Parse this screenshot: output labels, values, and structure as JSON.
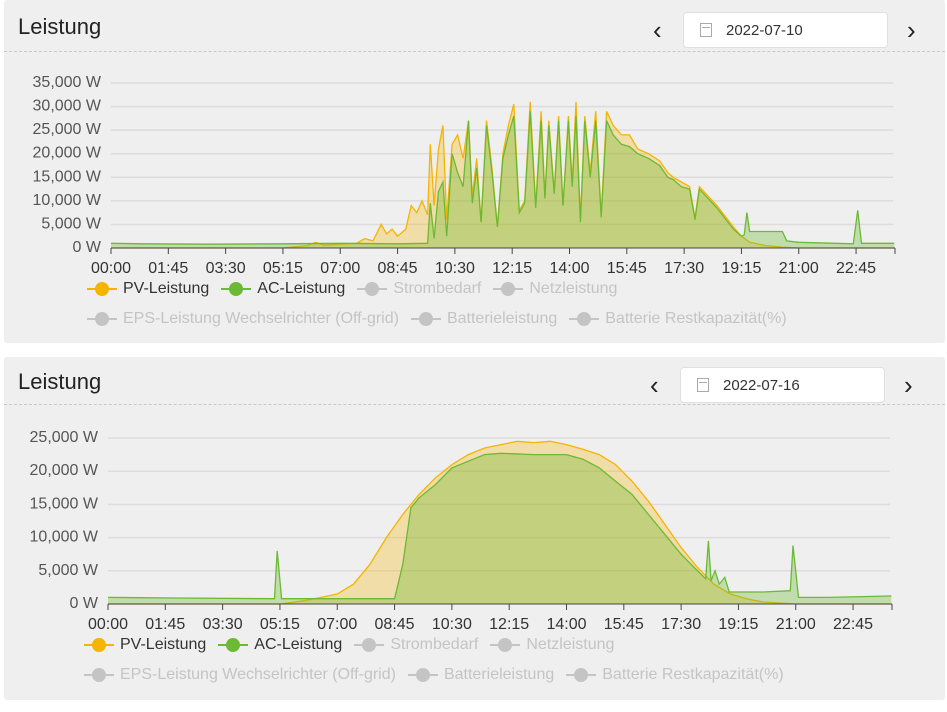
{
  "colors": {
    "pv": "#f5b400",
    "ac": "#6cb934",
    "inactive": "#c4c4c4",
    "grid": "#dcdcdc"
  },
  "icons": {
    "prev": "chevron-left-icon",
    "next": "chevron-right-icon",
    "date": "calendar-icon"
  },
  "legend": [
    {
      "label": "PV-Leistung",
      "active": true,
      "color": "#f5b400"
    },
    {
      "label": "AC-Leistung",
      "active": true,
      "color": "#6cb934"
    },
    {
      "label": "Strombedarf",
      "active": false
    },
    {
      "label": "Netzleistung",
      "active": false
    },
    {
      "label": "EPS-Leistung Wechselrichter (Off-grid)",
      "active": false
    },
    {
      "label": "Batterieleistung",
      "active": false
    },
    {
      "label": "Batterie Restkapazität(%)",
      "active": false
    }
  ],
  "panels": [
    {
      "title": "Leistung",
      "date": "2022-07-10",
      "prev": "‹",
      "next": "›"
    },
    {
      "title": "Leistung",
      "date": "2022-07-16",
      "prev": "‹",
      "next": "›"
    }
  ],
  "chart_data": [
    {
      "type": "area",
      "title": "",
      "xlabel": "",
      "ylabel": "",
      "grid": true,
      "legend_placement": "bottom",
      "xticks": [
        "00:00",
        "01:45",
        "03:30",
        "05:15",
        "07:00",
        "08:45",
        "10:30",
        "12:15",
        "14:00",
        "15:45",
        "17:30",
        "19:15",
        "21:00",
        "22:45"
      ],
      "yticks": [
        "0 W",
        "5,000 W",
        "10,000 W",
        "15,000 W",
        "20,000 W",
        "25,000 W",
        "30,000 W",
        "35,000 W"
      ],
      "ylim": [
        0,
        35000
      ],
      "series": [
        {
          "name": "PV-Leistung",
          "points": [
            [
              "00:00",
              0
            ],
            [
              "05:15",
              0
            ],
            [
              "06:00",
              500
            ],
            [
              "06:15",
              1200
            ],
            [
              "06:30",
              600
            ],
            [
              "07:00",
              800
            ],
            [
              "07:30",
              1000
            ],
            [
              "07:45",
              2000
            ],
            [
              "08:00",
              1500
            ],
            [
              "08:15",
              5000
            ],
            [
              "08:25",
              3000
            ],
            [
              "08:35",
              4000
            ],
            [
              "08:45",
              2500
            ],
            [
              "09:00",
              4000
            ],
            [
              "09:10",
              9000
            ],
            [
              "09:20",
              7500
            ],
            [
              "09:30",
              10000
            ],
            [
              "09:40",
              7000
            ],
            [
              "09:45",
              22000
            ],
            [
              "09:52",
              9000
            ],
            [
              "10:00",
              21000
            ],
            [
              "10:08",
              26000
            ],
            [
              "10:15",
              6000
            ],
            [
              "10:25",
              22000
            ],
            [
              "10:35",
              24000
            ],
            [
              "10:45",
              19000
            ],
            [
              "10:55",
              27000
            ],
            [
              "11:02",
              11000
            ],
            [
              "11:10",
              19000
            ],
            [
              "11:18",
              5500
            ],
            [
              "11:28",
              27000
            ],
            [
              "11:38",
              17000
            ],
            [
              "11:48",
              4500
            ],
            [
              "11:58",
              20000
            ],
            [
              "12:08",
              26000
            ],
            [
              "12:18",
              30500
            ],
            [
              "12:28",
              8000
            ],
            [
              "12:38",
              10000
            ],
            [
              "12:48",
              31000
            ],
            [
              "12:58",
              9000
            ],
            [
              "13:08",
              29000
            ],
            [
              "13:15",
              11000
            ],
            [
              "13:22",
              27000
            ],
            [
              "13:32",
              12000
            ],
            [
              "13:40",
              28000
            ],
            [
              "13:48",
              9000
            ],
            [
              "13:58",
              28000
            ],
            [
              "14:05",
              14000
            ],
            [
              "14:12",
              31000
            ],
            [
              "14:20",
              6000
            ],
            [
              "14:28",
              28000
            ],
            [
              "14:38",
              16000
            ],
            [
              "14:48",
              29000
            ],
            [
              "14:58",
              7000
            ],
            [
              "15:08",
              29000
            ],
            [
              "15:20",
              26000
            ],
            [
              "15:35",
              24000
            ],
            [
              "15:50",
              24000
            ],
            [
              "16:05",
              21000
            ],
            [
              "16:25",
              20000
            ],
            [
              "16:45",
              18500
            ],
            [
              "17:00",
              16000
            ],
            [
              "17:10",
              15000
            ],
            [
              "17:25",
              14000
            ],
            [
              "17:40",
              13000
            ],
            [
              "17:50",
              6500
            ],
            [
              "17:58",
              13000
            ],
            [
              "18:30",
              9000
            ],
            [
              "19:00",
              4500
            ],
            [
              "19:15",
              2500
            ],
            [
              "19:30",
              1200
            ],
            [
              "20:00",
              500
            ],
            [
              "20:30",
              200
            ],
            [
              "21:00",
              0
            ],
            [
              "23:55",
              0
            ]
          ]
        },
        {
          "name": "AC-Leistung",
          "points": [
            [
              "00:00",
              1000
            ],
            [
              "01:00",
              900
            ],
            [
              "03:00",
              800
            ],
            [
              "05:15",
              900
            ],
            [
              "07:00",
              1000
            ],
            [
              "08:45",
              900
            ],
            [
              "09:40",
              1000
            ],
            [
              "09:45",
              9500
            ],
            [
              "09:52",
              2000
            ],
            [
              "10:00",
              12000
            ],
            [
              "10:08",
              14000
            ],
            [
              "10:15",
              2500
            ],
            [
              "10:25",
              20000
            ],
            [
              "10:35",
              16000
            ],
            [
              "10:45",
              13000
            ],
            [
              "10:55",
              27000
            ],
            [
              "11:02",
              9500
            ],
            [
              "11:10",
              17000
            ],
            [
              "11:18",
              5500
            ],
            [
              "11:28",
              26000
            ],
            [
              "11:38",
              16000
            ],
            [
              "11:48",
              4500
            ],
            [
              "11:58",
              19000
            ],
            [
              "12:08",
              24000
            ],
            [
              "12:18",
              28000
            ],
            [
              "12:28",
              7500
            ],
            [
              "12:38",
              9500
            ],
            [
              "12:48",
              29000
            ],
            [
              "12:58",
              8500
            ],
            [
              "13:08",
              27000
            ],
            [
              "13:15",
              10500
            ],
            [
              "13:22",
              26000
            ],
            [
              "13:32",
              11500
            ],
            [
              "13:40",
              27000
            ],
            [
              "13:48",
              9000
            ],
            [
              "13:58",
              27000
            ],
            [
              "14:05",
              13000
            ],
            [
              "14:12",
              28000
            ],
            [
              "14:20",
              5500
            ],
            [
              "14:28",
              27000
            ],
            [
              "14:38",
              15000
            ],
            [
              "14:48",
              27000
            ],
            [
              "14:58",
              6500
            ],
            [
              "15:08",
              27000
            ],
            [
              "15:20",
              24000
            ],
            [
              "15:35",
              22000
            ],
            [
              "15:50",
              21500
            ],
            [
              "16:05",
              20000
            ],
            [
              "16:25",
              19000
            ],
            [
              "16:45",
              17500
            ],
            [
              "17:00",
              15000
            ],
            [
              "17:10",
              14500
            ],
            [
              "17:25",
              13000
            ],
            [
              "17:40",
              12500
            ],
            [
              "17:50",
              6000
            ],
            [
              "17:58",
              12500
            ],
            [
              "18:30",
              8500
            ],
            [
              "19:00",
              4000
            ],
            [
              "19:15",
              2500
            ],
            [
              "19:20",
              2800
            ],
            [
              "19:25",
              7500
            ],
            [
              "19:30",
              3500
            ],
            [
              "20:30",
              3500
            ],
            [
              "20:38",
              1500
            ],
            [
              "21:00",
              1200
            ],
            [
              "22:40",
              900
            ],
            [
              "22:48",
              8000
            ],
            [
              "22:55",
              1000
            ],
            [
              "23:55",
              1000
            ]
          ]
        }
      ]
    },
    {
      "type": "area",
      "title": "",
      "xlabel": "",
      "ylabel": "",
      "grid": true,
      "legend_placement": "bottom",
      "xticks": [
        "00:00",
        "01:45",
        "03:30",
        "05:15",
        "07:00",
        "08:45",
        "10:30",
        "12:15",
        "14:00",
        "15:45",
        "17:30",
        "19:15",
        "21:00",
        "22:45"
      ],
      "yticks": [
        "0 W",
        "5,000 W",
        "10,000 W",
        "15,000 W",
        "20,000 W",
        "25,000 W"
      ],
      "ylim": [
        0,
        25000
      ],
      "series": [
        {
          "name": "PV-Leistung",
          "points": [
            [
              "00:00",
              0
            ],
            [
              "05:15",
              0
            ],
            [
              "06:00",
              500
            ],
            [
              "06:30",
              1000
            ],
            [
              "07:00",
              1500
            ],
            [
              "07:30",
              3000
            ],
            [
              "08:00",
              6000
            ],
            [
              "08:30",
              10000
            ],
            [
              "09:00",
              13500
            ],
            [
              "09:30",
              16500
            ],
            [
              "10:00",
              19000
            ],
            [
              "10:30",
              21000
            ],
            [
              "11:00",
              22500
            ],
            [
              "11:30",
              23500
            ],
            [
              "12:00",
              24000
            ],
            [
              "12:30",
              24500
            ],
            [
              "13:00",
              24300
            ],
            [
              "13:30",
              24500
            ],
            [
              "14:00",
              24000
            ],
            [
              "14:30",
              23300
            ],
            [
              "15:00",
              22500
            ],
            [
              "15:30",
              21000
            ],
            [
              "16:00",
              18500
            ],
            [
              "16:30",
              15500
            ],
            [
              "17:00",
              12000
            ],
            [
              "17:30",
              8500
            ],
            [
              "18:00",
              5500
            ],
            [
              "18:30",
              3000
            ],
            [
              "19:00",
              1500
            ],
            [
              "19:30",
              800
            ],
            [
              "20:00",
              300
            ],
            [
              "21:00",
              0
            ],
            [
              "23:55",
              0
            ]
          ]
        },
        {
          "name": "AC-Leistung",
          "points": [
            [
              "00:00",
              1000
            ],
            [
              "02:00",
              900
            ],
            [
              "05:05",
              800
            ],
            [
              "05:10",
              8000
            ],
            [
              "05:18",
              800
            ],
            [
              "07:00",
              800
            ],
            [
              "08:45",
              800
            ],
            [
              "09:00",
              6000
            ],
            [
              "09:15",
              14500
            ],
            [
              "09:30",
              16000
            ],
            [
              "10:00",
              18000
            ],
            [
              "10:30",
              20500
            ],
            [
              "11:00",
              21500
            ],
            [
              "11:30",
              22500
            ],
            [
              "12:00",
              22700
            ],
            [
              "13:00",
              22500
            ],
            [
              "14:00",
              22500
            ],
            [
              "14:30",
              21800
            ],
            [
              "15:00",
              20500
            ],
            [
              "15:30",
              18500
            ],
            [
              "16:00",
              16500
            ],
            [
              "16:30",
              13500
            ],
            [
              "17:00",
              10500
            ],
            [
              "17:30",
              7500
            ],
            [
              "18:00",
              5000
            ],
            [
              "18:15",
              3800
            ],
            [
              "18:20",
              9500
            ],
            [
              "18:25",
              3500
            ],
            [
              "18:32",
              5000
            ],
            [
              "18:40",
              3000
            ],
            [
              "18:50",
              4000
            ],
            [
              "18:58",
              1800
            ],
            [
              "19:10",
              1800
            ],
            [
              "20:00",
              1800
            ],
            [
              "20:50",
              2000
            ],
            [
              "20:55",
              8800
            ],
            [
              "21:05",
              1000
            ],
            [
              "22:00",
              1000
            ],
            [
              "23:55",
              1200
            ]
          ]
        }
      ]
    }
  ]
}
